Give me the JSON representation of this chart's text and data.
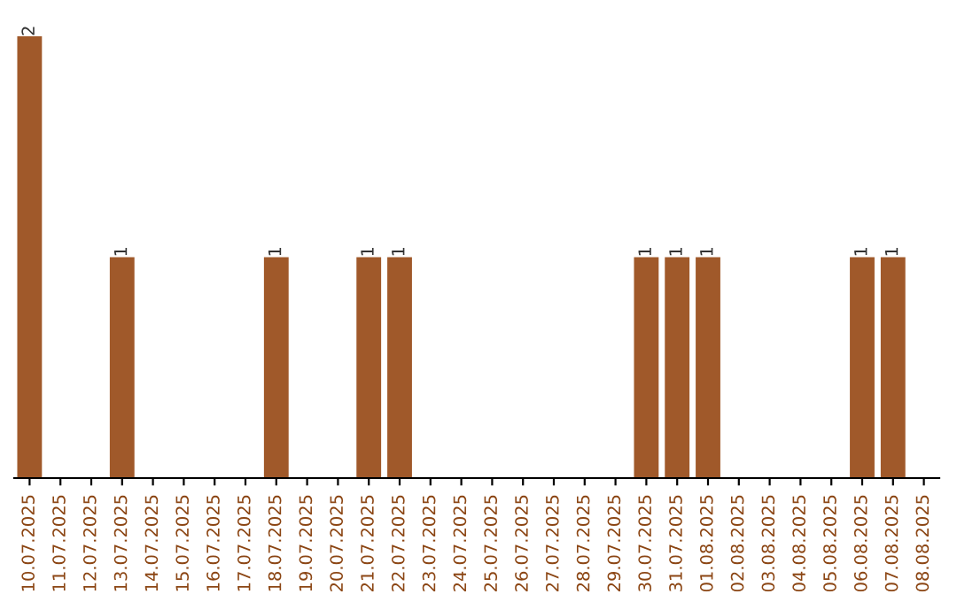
{
  "chart_data": {
    "type": "bar",
    "categories": [
      "10.07.2025",
      "11.07.2025",
      "12.07.2025",
      "13.07.2025",
      "14.07.2025",
      "15.07.2025",
      "16.07.2025",
      "17.07.2025",
      "18.07.2025",
      "19.07.2025",
      "20.07.2025",
      "21.07.2025",
      "22.07.2025",
      "23.07.2025",
      "24.07.2025",
      "25.07.2025",
      "26.07.2025",
      "27.07.2025",
      "28.07.2025",
      "29.07.2025",
      "30.07.2025",
      "31.07.2025",
      "01.08.2025",
      "02.08.2025",
      "03.08.2025",
      "04.08.2025",
      "05.08.2025",
      "06.08.2025",
      "07.08.2025",
      "08.08.2025"
    ],
    "values": [
      2,
      0,
      0,
      1,
      0,
      0,
      0,
      0,
      1,
      0,
      0,
      1,
      1,
      0,
      0,
      0,
      0,
      0,
      0,
      0,
      1,
      1,
      1,
      0,
      0,
      0,
      0,
      1,
      1,
      0
    ],
    "value_labels": [
      "2",
      null,
      null,
      "1",
      null,
      null,
      null,
      null,
      "1",
      null,
      null,
      "1",
      "1",
      null,
      null,
      null,
      null,
      null,
      null,
      null,
      "1",
      "1",
      "1",
      null,
      null,
      null,
      null,
      "1",
      "1",
      null
    ],
    "color": "#a0592a",
    "grid": false,
    "legend": false
  }
}
